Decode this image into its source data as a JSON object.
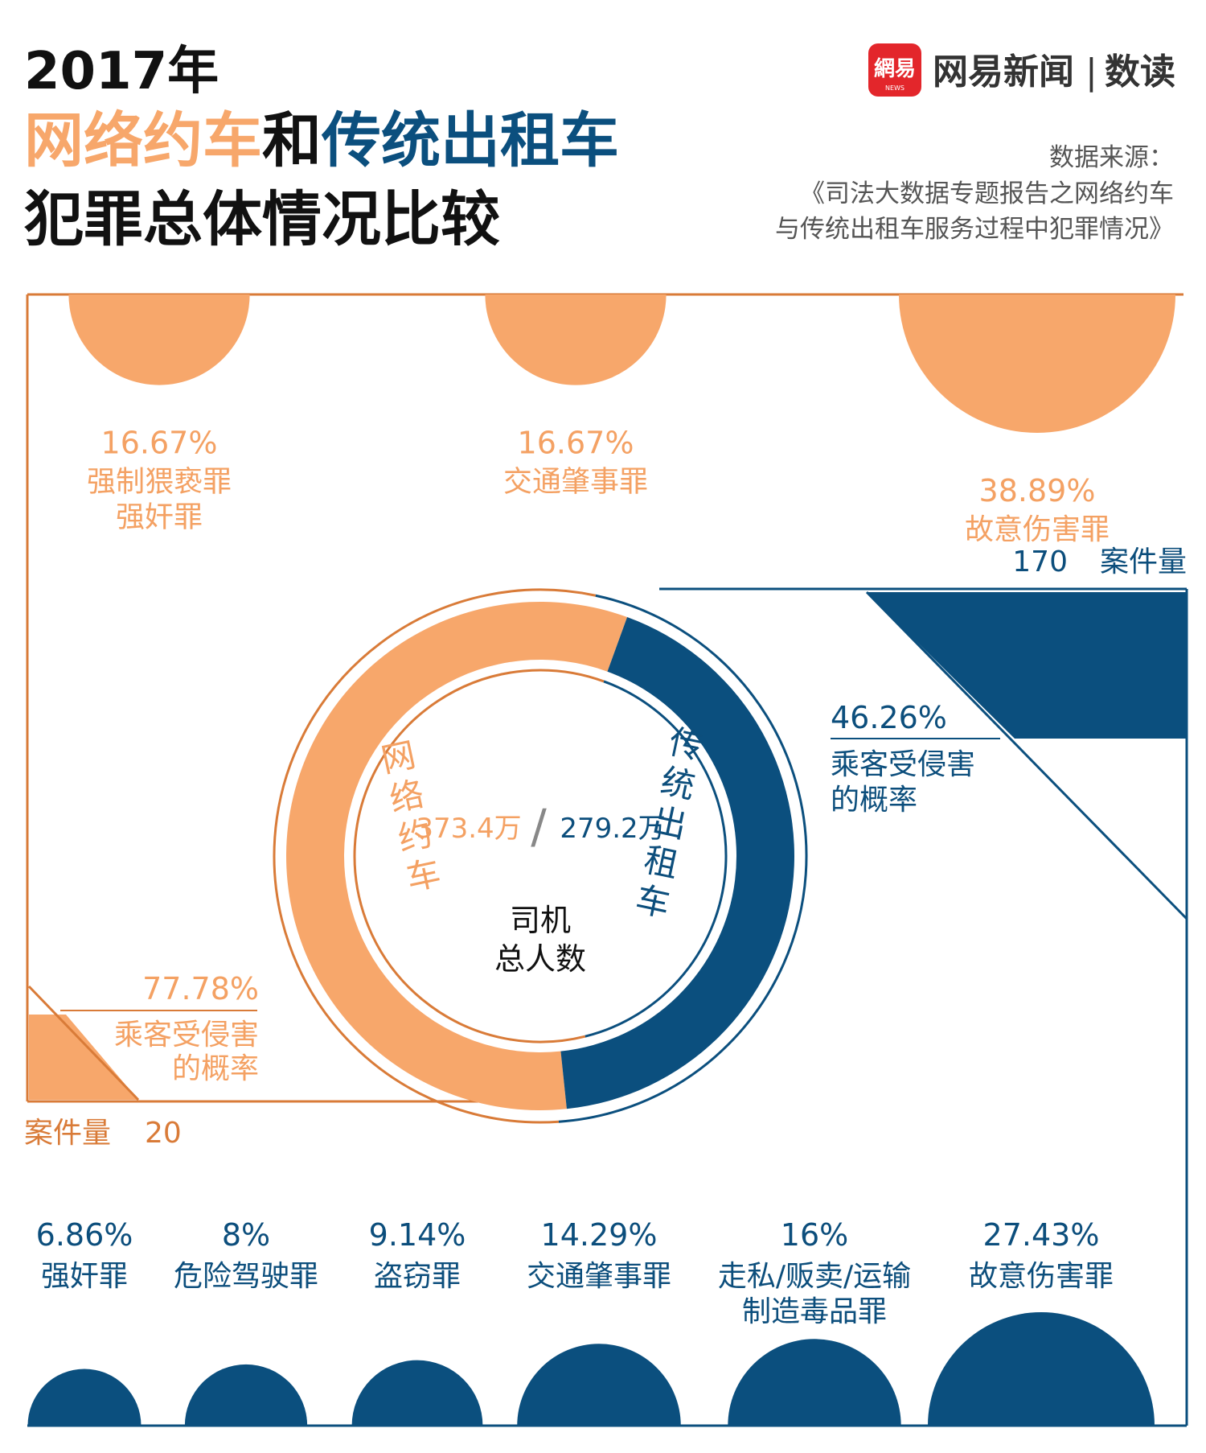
{
  "header": {
    "year": "2017年",
    "title_orange": "网络约车",
    "title_and": "和",
    "title_blue": "传统出租车",
    "title_line3": "犯罪总体情况比较"
  },
  "brand": {
    "logo_text": "網易",
    "logo_sub": "NEWS",
    "name": "网易新闻",
    "separator": "|",
    "column": "数读"
  },
  "source": {
    "label": "数据来源：",
    "line1": "《司法大数据专题报告之网络约车",
    "line2": "与传统出租车服务过程中犯罪情况》"
  },
  "colors": {
    "orange": "#f7a76b",
    "orange_dark": "#d97b38",
    "orange_text": "#f4a163",
    "navy": "#0b4f7e",
    "navy_text": "#0c4e7c",
    "black": "#111111"
  },
  "chart_data": [
    {
      "type": "pie",
      "center_label_1": "司机",
      "center_label_2": "总人数",
      "separator": "/",
      "slices": [
        {
          "name": "网络约车",
          "label": "373.4万",
          "value": 373.4,
          "unit": "万"
        },
        {
          "name": "传统出租车",
          "label": "279.2万",
          "value": 279.2,
          "unit": "万"
        }
      ]
    },
    {
      "type": "scatter",
      "series": "网络约车",
      "case_label": "案件量",
      "case_count": "20",
      "case_value": 20,
      "victim_rate_label": "77.78%",
      "victim_rate_value": 77.78,
      "victim_text_1": "乘客受侵害",
      "victim_text_2": "的概率",
      "crimes": [
        {
          "pct": "16.67%",
          "value": 16.67,
          "name_1": "强制猥亵罪",
          "name_2": "强奸罪"
        },
        {
          "pct": "16.67%",
          "value": 16.67,
          "name_1": "交通肇事罪",
          "name_2": ""
        },
        {
          "pct": "38.89%",
          "value": 38.89,
          "name_1": "故意伤害罪",
          "name_2": ""
        }
      ]
    },
    {
      "type": "scatter",
      "series": "传统出租车",
      "case_label": "案件量",
      "case_count": "170",
      "case_value": 170,
      "victim_rate_label": "46.26%",
      "victim_rate_value": 46.26,
      "victim_text_1": "乘客受侵害",
      "victim_text_2": "的概率",
      "crimes": [
        {
          "pct": "6.86%",
          "value": 6.86,
          "name_1": "强奸罪",
          "name_2": ""
        },
        {
          "pct": "8%",
          "value": 8,
          "name_1": "危险驾驶罪",
          "name_2": ""
        },
        {
          "pct": "9.14%",
          "value": 9.14,
          "name_1": "盗窃罪",
          "name_2": ""
        },
        {
          "pct": "14.29%",
          "value": 14.29,
          "name_1": "交通肇事罪",
          "name_2": ""
        },
        {
          "pct": "16%",
          "value": 16,
          "name_1": "走私/贩卖/运输",
          "name_2": "制造毒品罪"
        },
        {
          "pct": "27.43%",
          "value": 27.43,
          "name_1": "故意伤害罪",
          "name_2": ""
        }
      ]
    }
  ]
}
